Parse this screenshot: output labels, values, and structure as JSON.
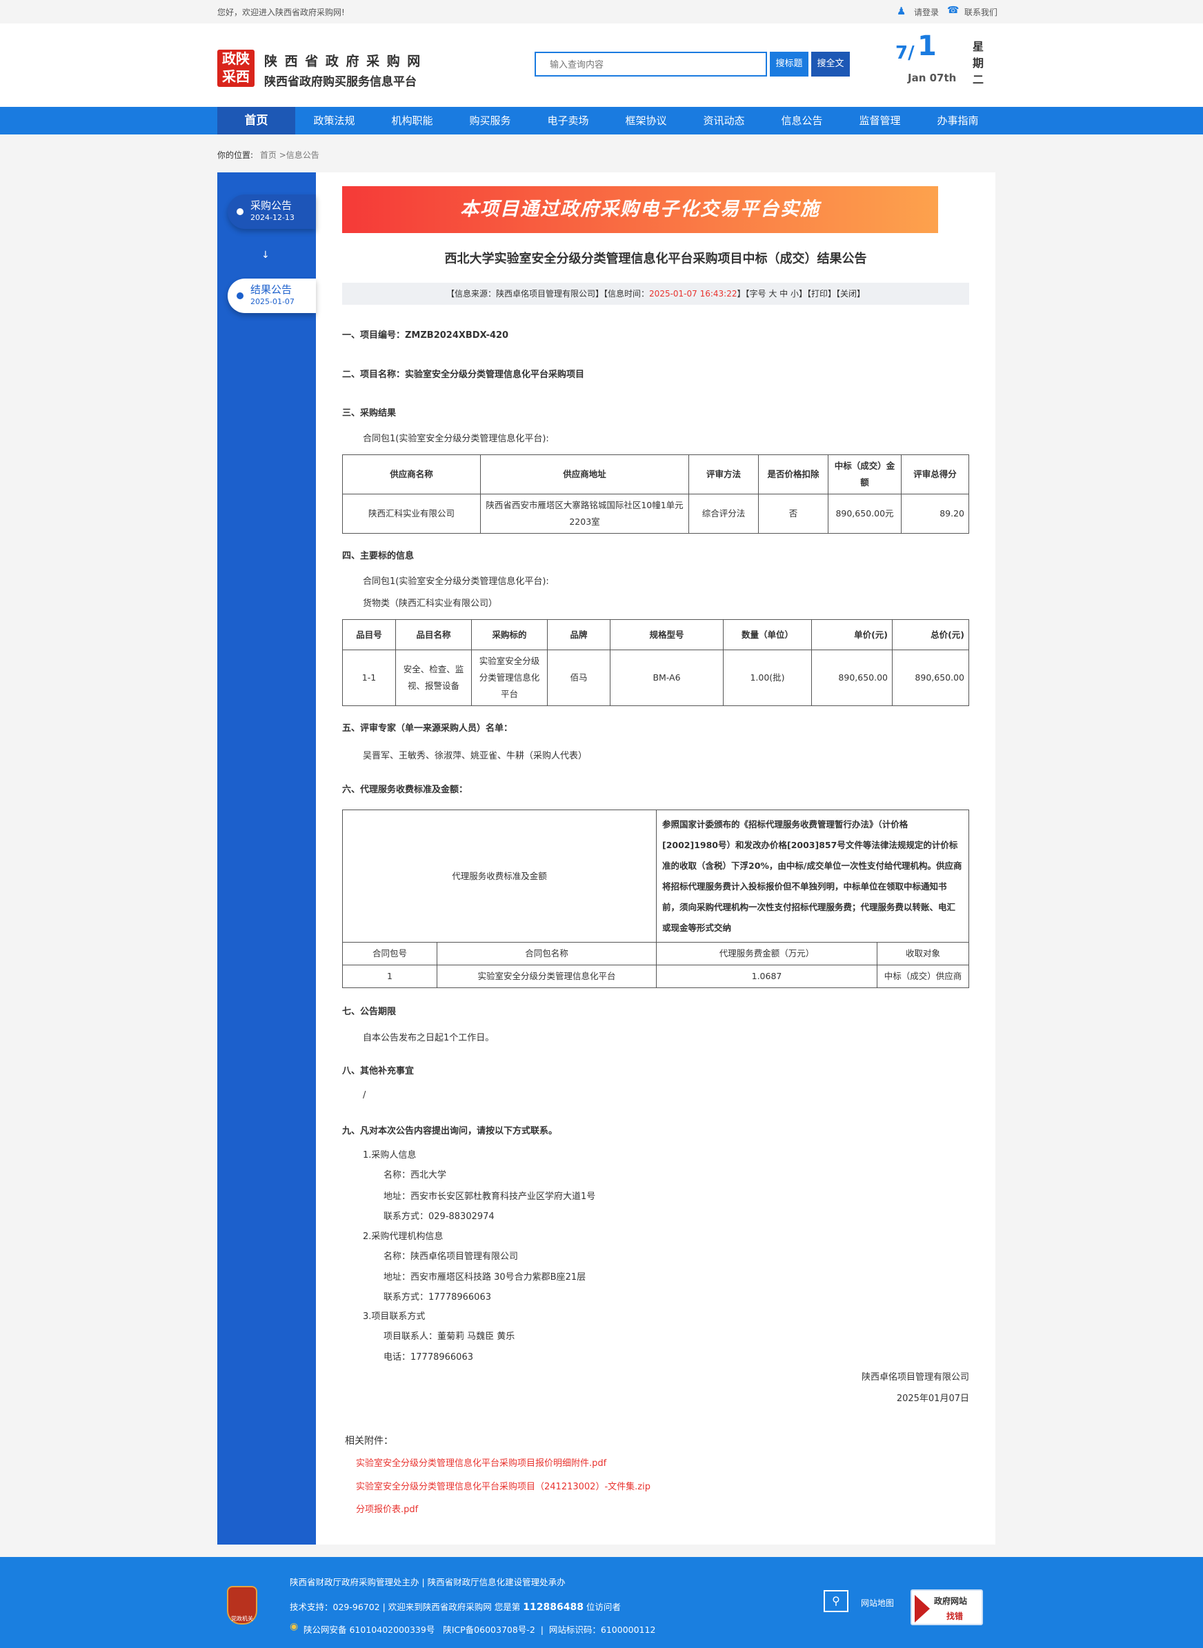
{
  "topbar": {
    "welcome": "您好，欢迎进入陕西省政府采购网!",
    "login": "请登录",
    "contact": "联系我们"
  },
  "header": {
    "logo_text": "政陕采西",
    "title": "陕 西 省 政 府 采 购 网",
    "subtitle": "陕西省政府购买服务信息平台",
    "search_placeholder": "输入查询内容",
    "search_title_btn": "搜标题",
    "search_full_btn": "搜全文",
    "date_month": "7/",
    "date_day": "1",
    "date_en": "Jan 07th",
    "weekday": "星期二"
  },
  "nav": [
    "首页",
    "政策法规",
    "机构职能",
    "购买服务",
    "电子卖场",
    "框架协议",
    "资讯动态",
    "信息公告",
    "监督管理",
    "办事指南"
  ],
  "breadcrumb": {
    "label": "你的位置:",
    "path": "首页 >信息公告"
  },
  "timeline": [
    {
      "label": "采购公告",
      "date": "2024-12-13"
    },
    {
      "label": "结果公告",
      "date": "2025-01-07"
    }
  ],
  "colors": {
    "primary": "#1a7be0",
    "nav_active": "#1d58b5",
    "sidebar": "#1c60cc",
    "link": "#e8332f"
  },
  "article": {
    "banner": "本项目通过政府采购电子化交易平台实施",
    "title": "西北大学实验室安全分级分类管理信息化平台采购项目中标（成交）结果公告",
    "meta": {
      "source": "【信息来源：陕西卓佲项目管理有限公司】【信息时间：",
      "time": "2025-01-07 16:43:22",
      "tail": "】【字号 大 中 小】【打印】【关闭】"
    },
    "s1": "一、项目编号：ZMZB2024XBDX-420",
    "s2": "二、项目名称：实验室安全分级分类管理信息化平台采购项目",
    "s3": "三、采购结果",
    "s3_pkg": "合同包1(实验室安全分级分类管理信息化平台):",
    "t1_head": [
      "供应商名称",
      "供应商地址",
      "评审方法",
      "是否价格扣除",
      "中标（成交）金额",
      "评审总得分"
    ],
    "t1_row": [
      "陕西汇科实业有限公司",
      "陕西省西安市雁塔区大寨路铭城国际社区10幢1单元2203室",
      "综合评分法",
      "否",
      "890,650.00元",
      "89.20"
    ],
    "s4": "四、主要标的信息",
    "s4_pkg": "合同包1(实验室安全分级分类管理信息化平台):",
    "s4_cat": "货物类（陕西汇科实业有限公司）",
    "t2_head": [
      "品目号",
      "品目名称",
      "采购标的",
      "品牌",
      "规格型号",
      "数量（单位）",
      "单价(元)",
      "总价(元)"
    ],
    "t2_row": [
      "1-1",
      "安全、检查、监视、报警设备",
      "实验室安全分级分类管理信息化平台",
      "佰马",
      "BM-A6",
      "1.00(批)",
      "890,650.00",
      "890,650.00"
    ],
    "s5": "五、评审专家（单一来源采购人员）名单：",
    "s5_names": "吴晋军、王敏秀、徐淑萍、姚亚雀、牛耕（采购人代表）",
    "s6": "六、代理服务收费标准及金额：",
    "t3_label": "代理服务收费标准及金额",
    "t3_desc": "参照国家计委颁布的《招标代理服务收费管理暂行办法》（计价格[2002]1980号）和发改办价格[2003]857号文件等法律法规规定的计价标准的收取（含税）下浮20%，由中标/成交单位一次性支付给代理机构。供应商将招标代理服务费计入投标报价但不单独列明，中标单位在领取中标通知书前，须向采购代理机构一次性支付招标代理服务费；代理服务费以转账、电汇或现金等形式交纳",
    "t3_head": [
      "合同包号",
      "合同包名称",
      "代理服务费金额（万元）",
      "收取对象"
    ],
    "t3_row": [
      "1",
      "实验室安全分级分类管理信息化平台",
      "1.0687",
      "中标（成交）供应商"
    ],
    "s7": "七、公告期限",
    "s7_text": "自本公告发布之日起1个工作日。",
    "s8": "八、其他补充事宜",
    "s8_text": "/",
    "s9": "九、凡对本次公告内容提出询问，请按以下方式联系。",
    "c1": "1.采购人信息",
    "c1_name": "名称：西北大学",
    "c1_addr": "地址：西安市长安区郭杜教育科技产业区学府大道1号",
    "c1_tel": "联系方式：029-88302974",
    "c2": "2.采购代理机构信息",
    "c2_name": "名称：陕西卓佲项目管理有限公司",
    "c2_addr": "地址：西安市雁塔区科技路 30号合力紫郡B座21层",
    "c2_tel": "联系方式：17778966063",
    "c3": "3.项目联系方式",
    "c3_person": "项目联系人：董菊莉 马魏臣 黄乐",
    "c3_tel": "电话：17778966063",
    "sign_org": "陕西卓佲项目管理有限公司",
    "sign_date": "2025年01月07日",
    "attach_label": "相关附件：",
    "attachments": [
      "实验室安全分级分类管理信息化平台采购项目报价明细附件.pdf",
      "实验室安全分级分类管理信息化平台采购项目（241213002）-文件集.zip",
      "分项报价表.pdf"
    ]
  },
  "footer": {
    "badge": "党政机关",
    "line1": "陕西省财政厅政府采购管理处主办 | 陕西省财政厅信息化建设管理处承办",
    "line2_pre": "技术支持：029-96702 | 欢迎来到陕西省政府采购网 您是第",
    "visitors": "112886488",
    "line2_post": "位访问者",
    "line3": "陕公网安备 61010402000339号   陕ICP备06003708号-2  |  网站标识码：6100000112",
    "sitemap": "网站地图",
    "jiucuo_top": "政府网站",
    "jiucuo_bottom": "找错"
  }
}
